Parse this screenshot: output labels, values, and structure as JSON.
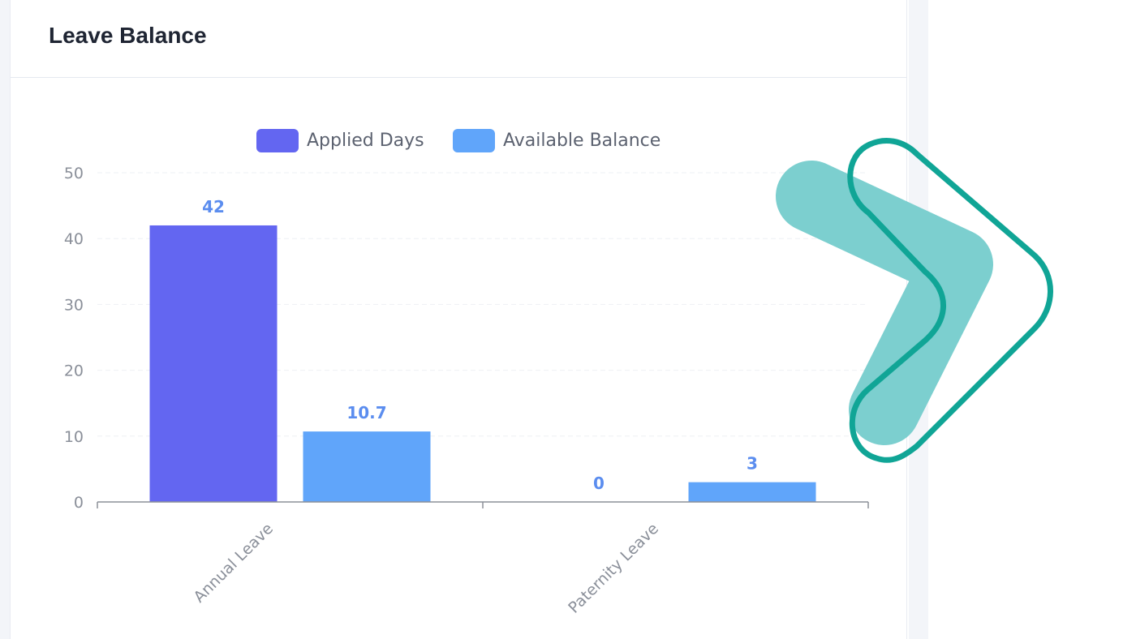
{
  "card": {
    "title": "Leave Balance"
  },
  "chart_data": {
    "type": "bar",
    "categories": [
      "Annual Leave",
      "Paternity Leave"
    ],
    "series": [
      {
        "name": "Applied Days",
        "values": [
          42,
          0
        ],
        "labels": [
          "42",
          "0"
        ],
        "color": "#6366f1"
      },
      {
        "name": "Available Balance",
        "values": [
          10.7,
          3
        ],
        "labels": [
          "10.7",
          "3"
        ],
        "color": "#60a5fa"
      }
    ],
    "ylim": [
      0,
      50
    ],
    "yticks": [
      0,
      10,
      20,
      30,
      40,
      50
    ],
    "legend_position": "top-center",
    "grid": true,
    "xlabel": "",
    "ylabel": "",
    "label_color": "#5b8def",
    "tick_label_color": "#8a8f99"
  },
  "overlay": {
    "icon": "chevron-right-icon",
    "fill_color": "#7ccfcf",
    "stroke_color": "#10a596"
  }
}
